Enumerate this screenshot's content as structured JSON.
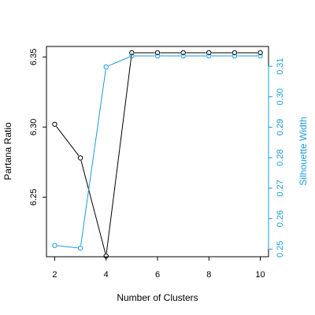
{
  "chart_data": {
    "type": "line",
    "xlabel": "Number of Clusters",
    "ylabel": "Partana Ratio",
    "y2label": "Silhouette Width",
    "x": [
      2,
      3,
      4,
      5,
      6,
      7,
      8,
      9,
      10
    ],
    "xticks": [
      2,
      4,
      6,
      8,
      10
    ],
    "xlim": [
      1.68,
      10.32
    ],
    "ylim": [
      6.2075,
      6.3575
    ],
    "y2lim": [
      0.2475,
      0.3165
    ],
    "yticks": [
      "6.25",
      "6.30",
      "6.35"
    ],
    "y2ticks": [
      "0.25",
      "0.26",
      "0.27",
      "0.28",
      "0.29",
      "0.30",
      "0.31"
    ],
    "grid": false,
    "series": [
      {
        "axis": "left",
        "color": "#000000",
        "values": [
          6.302,
          6.278,
          6.208,
          6.353,
          6.353,
          6.353,
          6.353,
          6.353,
          6.353
        ]
      },
      {
        "axis": "right",
        "color": "#1b9cd8",
        "values": [
          0.2512,
          0.2503,
          0.3098,
          0.3134,
          0.3134,
          0.3134,
          0.3134,
          0.3134,
          0.3134
        ]
      }
    ]
  }
}
